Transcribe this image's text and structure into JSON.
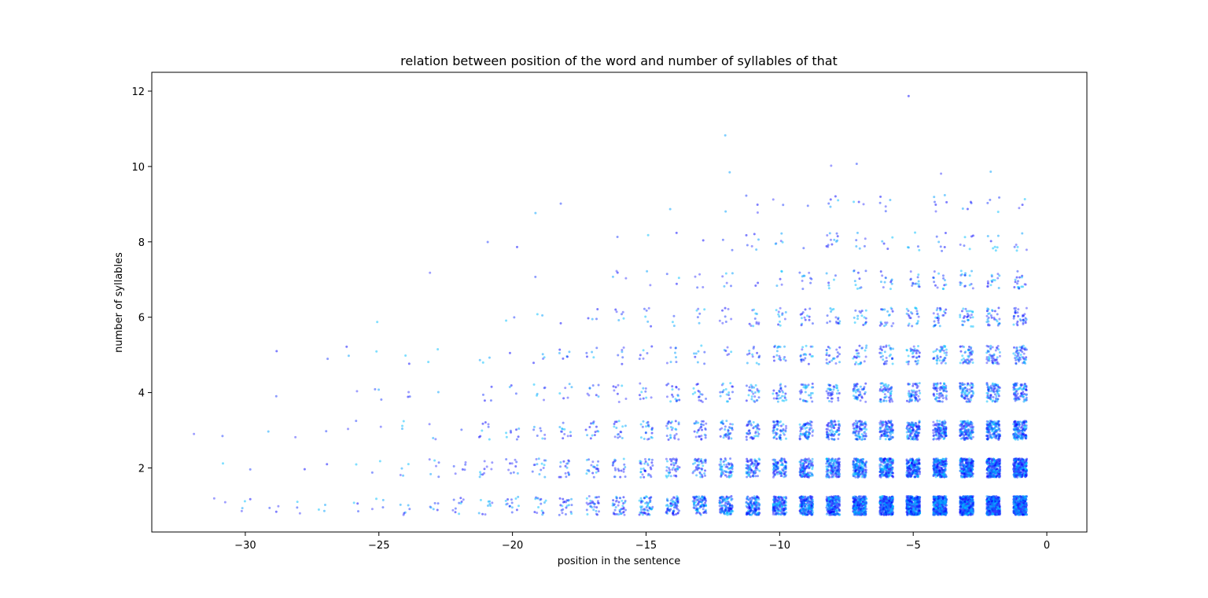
{
  "chart_data": {
    "type": "scatter",
    "title": "relation between position of the word and number of syllables of that",
    "xlabel": "position in the sentence",
    "ylabel": "number of syllables",
    "xlim": [
      -33.5,
      1.5
    ],
    "ylim": [
      0.3,
      12.5
    ],
    "xticks": [
      -30,
      -25,
      -20,
      -15,
      -10,
      -5,
      0
    ],
    "xtick_labels": [
      "−30",
      "−25",
      "−20",
      "−15",
      "−10",
      "−5",
      "0"
    ],
    "yticks": [
      2,
      4,
      6,
      8,
      10,
      12
    ],
    "ytick_labels": [
      "2",
      "4",
      "6",
      "8",
      "10",
      "12"
    ],
    "grid": false,
    "jitter": 0.25,
    "point_alpha": 0.5,
    "colors": [
      "#0000ff",
      "#00bfff",
      "#1e3cff",
      "#4040ff",
      "#00a0ff"
    ],
    "series": [
      {
        "points": [
          [
            -32,
            3,
            1
          ],
          [
            -31,
            1,
            2
          ],
          [
            -31,
            2,
            1
          ],
          [
            -31,
            3,
            1
          ],
          [
            -30,
            1,
            4
          ],
          [
            -30,
            2,
            1
          ],
          [
            -29,
            1,
            3
          ],
          [
            -29,
            3,
            1
          ],
          [
            -29,
            4,
            1
          ],
          [
            -29,
            5,
            1
          ],
          [
            -28,
            1,
            3
          ],
          [
            -28,
            2,
            1
          ],
          [
            -28,
            3,
            1
          ],
          [
            -27,
            1,
            3
          ],
          [
            -27,
            2,
            1
          ],
          [
            -27,
            3,
            1
          ],
          [
            -27,
            5,
            1
          ],
          [
            -26,
            1,
            3
          ],
          [
            -26,
            2,
            1
          ],
          [
            -26,
            3,
            2
          ],
          [
            -26,
            4,
            1
          ],
          [
            -26,
            5,
            2
          ],
          [
            -25,
            1,
            4
          ],
          [
            -25,
            2,
            2
          ],
          [
            -25,
            3,
            1
          ],
          [
            -25,
            4,
            3
          ],
          [
            -25,
            5,
            1
          ],
          [
            -25,
            6,
            1
          ],
          [
            -24,
            1,
            6
          ],
          [
            -24,
            2,
            4
          ],
          [
            -24,
            3,
            3
          ],
          [
            -24,
            4,
            3
          ],
          [
            -24,
            5,
            2
          ],
          [
            -23,
            1,
            6
          ],
          [
            -23,
            2,
            6
          ],
          [
            -23,
            3,
            3
          ],
          [
            -23,
            4,
            1
          ],
          [
            -23,
            5,
            2
          ],
          [
            -23,
            7,
            1
          ],
          [
            -22,
            1,
            10
          ],
          [
            -22,
            2,
            6
          ],
          [
            -22,
            3,
            1
          ],
          [
            -21,
            1,
            10
          ],
          [
            -21,
            2,
            10
          ],
          [
            -21,
            3,
            8
          ],
          [
            -21,
            4,
            4
          ],
          [
            -21,
            5,
            3
          ],
          [
            -21,
            8,
            1
          ],
          [
            -20,
            1,
            14
          ],
          [
            -20,
            2,
            10
          ],
          [
            -20,
            3,
            8
          ],
          [
            -20,
            4,
            3
          ],
          [
            -20,
            5,
            1
          ],
          [
            -20,
            6,
            2
          ],
          [
            -20,
            8,
            1
          ],
          [
            -19,
            1,
            16
          ],
          [
            -19,
            2,
            14
          ],
          [
            -19,
            3,
            8
          ],
          [
            -19,
            4,
            6
          ],
          [
            -19,
            5,
            4
          ],
          [
            -19,
            6,
            2
          ],
          [
            -19,
            7,
            1
          ],
          [
            -19,
            9,
            1
          ],
          [
            -18,
            1,
            22
          ],
          [
            -18,
            2,
            16
          ],
          [
            -18,
            3,
            12
          ],
          [
            -18,
            4,
            6
          ],
          [
            -18,
            5,
            6
          ],
          [
            -18,
            6,
            1
          ],
          [
            -18,
            9,
            1
          ],
          [
            -17,
            1,
            30
          ],
          [
            -17,
            2,
            20
          ],
          [
            -17,
            3,
            14
          ],
          [
            -17,
            4,
            8
          ],
          [
            -17,
            5,
            5
          ],
          [
            -17,
            6,
            4
          ],
          [
            -16,
            1,
            40
          ],
          [
            -16,
            2,
            20
          ],
          [
            -16,
            3,
            16
          ],
          [
            -16,
            4,
            8
          ],
          [
            -16,
            5,
            6
          ],
          [
            -16,
            6,
            6
          ],
          [
            -16,
            7,
            4
          ],
          [
            -16,
            8,
            1
          ],
          [
            -15,
            1,
            55
          ],
          [
            -15,
            2,
            30
          ],
          [
            -15,
            3,
            22
          ],
          [
            -15,
            4,
            10
          ],
          [
            -15,
            5,
            6
          ],
          [
            -15,
            6,
            6
          ],
          [
            -15,
            7,
            2
          ],
          [
            -15,
            8,
            1
          ],
          [
            -14,
            1,
            70
          ],
          [
            -14,
            2,
            40
          ],
          [
            -14,
            3,
            26
          ],
          [
            -14,
            4,
            18
          ],
          [
            -14,
            5,
            8
          ],
          [
            -14,
            6,
            3
          ],
          [
            -14,
            7,
            3
          ],
          [
            -14,
            8,
            1
          ],
          [
            -14,
            9,
            1
          ],
          [
            -13,
            1,
            90
          ],
          [
            -13,
            2,
            45
          ],
          [
            -13,
            3,
            30
          ],
          [
            -13,
            4,
            15
          ],
          [
            -13,
            5,
            8
          ],
          [
            -13,
            6,
            6
          ],
          [
            -13,
            7,
            4
          ],
          [
            -13,
            8,
            1
          ],
          [
            -12,
            1,
            115
          ],
          [
            -12,
            2,
            60
          ],
          [
            -12,
            3,
            36
          ],
          [
            -12,
            4,
            18
          ],
          [
            -12,
            5,
            6
          ],
          [
            -12,
            6,
            8
          ],
          [
            -12,
            7,
            6
          ],
          [
            -12,
            8,
            2
          ],
          [
            -12,
            9,
            1
          ],
          [
            -12,
            10,
            1
          ],
          [
            -12,
            11,
            1
          ],
          [
            -11,
            1,
            140
          ],
          [
            -11,
            2,
            75
          ],
          [
            -11,
            3,
            45
          ],
          [
            -11,
            4,
            26
          ],
          [
            -11,
            5,
            14
          ],
          [
            -11,
            6,
            12
          ],
          [
            -11,
            7,
            2
          ],
          [
            -11,
            8,
            6
          ],
          [
            -11,
            9,
            3
          ],
          [
            -10,
            1,
            170
          ],
          [
            -10,
            2,
            95
          ],
          [
            -10,
            3,
            55
          ],
          [
            -10,
            4,
            30
          ],
          [
            -10,
            5,
            18
          ],
          [
            -10,
            6,
            12
          ],
          [
            -10,
            7,
            5
          ],
          [
            -10,
            8,
            5
          ],
          [
            -10,
            9,
            2
          ],
          [
            -9,
            1,
            210
          ],
          [
            -9,
            2,
            115
          ],
          [
            -9,
            3,
            65
          ],
          [
            -9,
            4,
            32
          ],
          [
            -9,
            5,
            20
          ],
          [
            -9,
            6,
            14
          ],
          [
            -9,
            7,
            10
          ],
          [
            -9,
            8,
            1
          ],
          [
            -9,
            9,
            1
          ],
          [
            -8,
            1,
            250
          ],
          [
            -8,
            2,
            140
          ],
          [
            -8,
            3,
            72
          ],
          [
            -8,
            4,
            38
          ],
          [
            -8,
            5,
            24
          ],
          [
            -8,
            6,
            16
          ],
          [
            -8,
            7,
            6
          ],
          [
            -8,
            8,
            12
          ],
          [
            -8,
            9,
            5
          ],
          [
            -8,
            10,
            1
          ],
          [
            -7,
            1,
            300
          ],
          [
            -7,
            2,
            165
          ],
          [
            -7,
            3,
            85
          ],
          [
            -7,
            4,
            46
          ],
          [
            -7,
            5,
            26
          ],
          [
            -7,
            6,
            16
          ],
          [
            -7,
            7,
            10
          ],
          [
            -7,
            8,
            6
          ],
          [
            -7,
            9,
            3
          ],
          [
            -7,
            10,
            1
          ],
          [
            -6,
            1,
            340
          ],
          [
            -6,
            2,
            190
          ],
          [
            -6,
            3,
            100
          ],
          [
            -6,
            4,
            52
          ],
          [
            -6,
            5,
            30
          ],
          [
            -6,
            6,
            20
          ],
          [
            -6,
            7,
            12
          ],
          [
            -6,
            8,
            4
          ],
          [
            -6,
            9,
            5
          ],
          [
            -5,
            1,
            380
          ],
          [
            -5,
            2,
            210
          ],
          [
            -5,
            3,
            110
          ],
          [
            -5,
            4,
            56
          ],
          [
            -5,
            5,
            34
          ],
          [
            -5,
            6,
            22
          ],
          [
            -5,
            7,
            14
          ],
          [
            -5,
            8,
            5
          ],
          [
            -5,
            12,
            1
          ],
          [
            -4,
            1,
            400
          ],
          [
            -4,
            2,
            230
          ],
          [
            -4,
            3,
            120
          ],
          [
            -4,
            4,
            65
          ],
          [
            -4,
            5,
            40
          ],
          [
            -4,
            6,
            26
          ],
          [
            -4,
            7,
            14
          ],
          [
            -4,
            8,
            6
          ],
          [
            -4,
            9,
            6
          ],
          [
            -4,
            10,
            1
          ],
          [
            -3,
            1,
            420
          ],
          [
            -3,
            2,
            245
          ],
          [
            -3,
            3,
            130
          ],
          [
            -3,
            4,
            70
          ],
          [
            -3,
            5,
            44
          ],
          [
            -3,
            6,
            28
          ],
          [
            -3,
            7,
            16
          ],
          [
            -3,
            8,
            6
          ],
          [
            -3,
            9,
            4
          ],
          [
            -2,
            1,
            440
          ],
          [
            -2,
            2,
            260
          ],
          [
            -2,
            3,
            140
          ],
          [
            -2,
            4,
            75
          ],
          [
            -2,
            5,
            48
          ],
          [
            -2,
            6,
            30
          ],
          [
            -2,
            7,
            16
          ],
          [
            -2,
            8,
            7
          ],
          [
            -2,
            9,
            4
          ],
          [
            -2,
            10,
            1
          ],
          [
            -1,
            1,
            460
          ],
          [
            -1,
            2,
            270
          ],
          [
            -1,
            3,
            150
          ],
          [
            -1,
            4,
            80
          ],
          [
            -1,
            5,
            52
          ],
          [
            -1,
            6,
            32
          ],
          [
            -1,
            7,
            18
          ],
          [
            -1,
            8,
            6
          ],
          [
            -1,
            9,
            3
          ]
        ]
      }
    ]
  }
}
